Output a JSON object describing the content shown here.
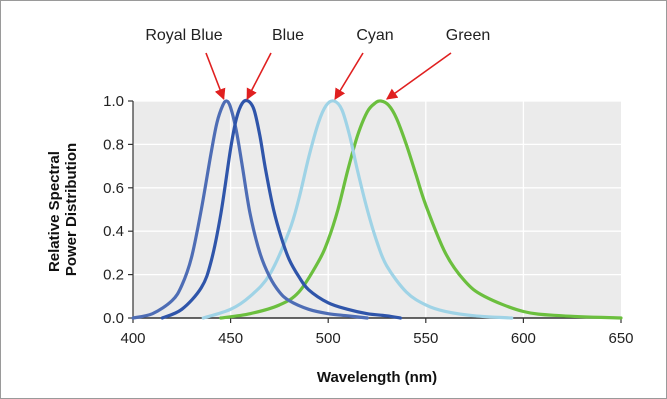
{
  "chart_data": {
    "type": "line",
    "title": "",
    "xlabel": "Wavelength (nm)",
    "ylabel_lines": [
      "Relative Spectral",
      "Power Distribution"
    ],
    "xlim": [
      400,
      650
    ],
    "ylim": [
      0,
      1.0
    ],
    "x_ticks": [
      400,
      450,
      500,
      550,
      600,
      650
    ],
    "x_tick_labels": [
      "400",
      "450",
      "500",
      "550",
      "600",
      "650"
    ],
    "y_ticks": [
      0.0,
      0.2,
      0.4,
      0.6,
      0.8,
      1.0
    ],
    "y_tick_labels": [
      "0.0",
      "0.2",
      "0.4",
      "0.6",
      "0.8",
      "1.0"
    ],
    "grid": true,
    "legend": "none",
    "background_color": "#ebebeb",
    "series": [
      {
        "name": "Royal Blue",
        "color": "#4e6db5",
        "peak": 448,
        "x": [
          400,
          410,
          420,
          425,
          430,
          435,
          440,
          443,
          446,
          448,
          450,
          453,
          456,
          460,
          465,
          470,
          475,
          480,
          490,
          500,
          510,
          520
        ],
        "values": [
          0.0,
          0.02,
          0.08,
          0.15,
          0.28,
          0.5,
          0.76,
          0.9,
          0.98,
          1.0,
          0.97,
          0.86,
          0.7,
          0.48,
          0.3,
          0.19,
          0.12,
          0.08,
          0.04,
          0.02,
          0.01,
          0.0
        ]
      },
      {
        "name": "Blue",
        "color": "#2f55aa",
        "peak": 459,
        "x": [
          415,
          425,
          435,
          440,
          445,
          450,
          453,
          456,
          459,
          462,
          465,
          468,
          472,
          476,
          480,
          485,
          490,
          500,
          510,
          520,
          530,
          537
        ],
        "values": [
          0.0,
          0.04,
          0.14,
          0.26,
          0.48,
          0.78,
          0.92,
          0.99,
          1.0,
          0.96,
          0.84,
          0.68,
          0.5,
          0.37,
          0.27,
          0.19,
          0.13,
          0.07,
          0.04,
          0.02,
          0.01,
          0.0
        ]
      },
      {
        "name": "Cyan",
        "color": "#9fd3e6",
        "peak": 503,
        "x": [
          436,
          450,
          460,
          470,
          480,
          485,
          490,
          495,
          499,
          503,
          507,
          511,
          515,
          520,
          525,
          530,
          540,
          550,
          560,
          575,
          594
        ],
        "values": [
          0.0,
          0.04,
          0.1,
          0.2,
          0.4,
          0.55,
          0.74,
          0.9,
          0.98,
          1.0,
          0.96,
          0.84,
          0.68,
          0.5,
          0.35,
          0.24,
          0.12,
          0.06,
          0.03,
          0.01,
          0.0
        ]
      },
      {
        "name": "Green",
        "color": "#6bbf3e",
        "peak": 527,
        "x": [
          445,
          460,
          475,
          485,
          495,
          500,
          505,
          510,
          515,
          520,
          524,
          527,
          531,
          535,
          540,
          545,
          550,
          560,
          570,
          580,
          600,
          620,
          650
        ],
        "values": [
          0.0,
          0.02,
          0.06,
          0.12,
          0.26,
          0.36,
          0.5,
          0.68,
          0.84,
          0.95,
          0.99,
          1.0,
          0.98,
          0.92,
          0.8,
          0.66,
          0.52,
          0.3,
          0.17,
          0.1,
          0.03,
          0.01,
          0.0
        ]
      }
    ],
    "annotations": [
      {
        "text": "Royal Blue",
        "points_to": "Royal Blue",
        "arrow_color": "#e02020"
      },
      {
        "text": "Blue",
        "points_to": "Blue",
        "arrow_color": "#e02020"
      },
      {
        "text": "Cyan",
        "points_to": "Cyan",
        "arrow_color": "#e02020"
      },
      {
        "text": "Green",
        "points_to": "Green",
        "arrow_color": "#e02020"
      }
    ]
  }
}
